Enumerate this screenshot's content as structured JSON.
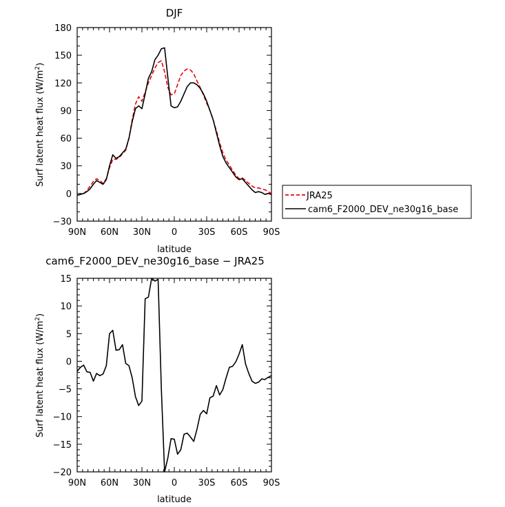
{
  "chart_data": [
    {
      "type": "line",
      "title": "DJF",
      "xlabel": "latitude",
      "ylabel": "Surf latent heat flux (W/m²)",
      "ylabel_main": "Surf latent heat flux (W/m",
      "ylabel_sup": "2",
      "ylabel_close": ")",
      "xlim": [
        90,
        -90
      ],
      "ylim": [
        -30,
        180
      ],
      "xtick_values": [
        90,
        60,
        30,
        0,
        -30,
        -60,
        -90
      ],
      "xtick_labels": [
        "90N",
        "60N",
        "30N",
        "0",
        "30S",
        "60S",
        "90S"
      ],
      "ytick_values": [
        -30,
        0,
        30,
        60,
        90,
        120,
        150,
        180
      ],
      "ytick_labels": [
        "−30",
        "0",
        "30",
        "60",
        "90",
        "120",
        "150",
        "180"
      ],
      "legend": {
        "position": "right",
        "entries": [
          "JRA25",
          "cam6_F2000_DEV_ne30g16_base"
        ]
      },
      "series": [
        {
          "name": "JRA25",
          "color": "#e8000b",
          "dash": "dashed",
          "x": [
            90,
            87,
            84,
            81,
            78,
            75,
            72,
            69,
            66,
            63,
            60,
            57,
            54,
            51,
            48,
            45,
            42,
            39,
            36,
            33,
            30,
            27,
            24,
            21,
            18,
            15,
            12,
            9,
            6,
            3,
            0,
            -3,
            -6,
            -9,
            -12,
            -15,
            -18,
            -21,
            -24,
            -27,
            -30,
            -33,
            -36,
            -39,
            -42,
            -45,
            -48,
            -51,
            -54,
            -57,
            -60,
            -63,
            -66,
            -69,
            -72,
            -75,
            -78,
            -81,
            -84,
            -87,
            -90
          ],
          "y": [
            -2,
            -1,
            0,
            3,
            8,
            13,
            16,
            14,
            11,
            16,
            28,
            37,
            37,
            39,
            43,
            47,
            60,
            80,
            97,
            105,
            100,
            110,
            120,
            128,
            136,
            142,
            144,
            132,
            115,
            107,
            108,
            118,
            128,
            133,
            135,
            134,
            130,
            122,
            115,
            107,
            98,
            90,
            80,
            68,
            55,
            44,
            36,
            31,
            25,
            20,
            16,
            17,
            14,
            11,
            8,
            6,
            6,
            5,
            4,
            2,
            0
          ]
        },
        {
          "name": "cam6_F2000_DEV_ne30g16_base",
          "color": "#000000",
          "dash": "solid",
          "x": [
            90,
            87,
            84,
            81,
            78,
            75,
            72,
            69,
            66,
            63,
            60,
            57,
            54,
            51,
            48,
            45,
            42,
            39,
            36,
            33,
            30,
            27,
            24,
            21,
            18,
            15,
            12,
            9,
            6,
            3,
            0,
            -3,
            -6,
            -9,
            -12,
            -15,
            -18,
            -21,
            -24,
            -27,
            -30,
            -33,
            -36,
            -39,
            -42,
            -45,
            -48,
            -51,
            -54,
            -57,
            -60,
            -63,
            -66,
            -69,
            -72,
            -75,
            -78,
            -81,
            -84,
            -87,
            -90
          ],
          "y": [
            -2,
            -1,
            0,
            2,
            5,
            10,
            14,
            12,
            10,
            15,
            30,
            42,
            38,
            40,
            44,
            48,
            60,
            78,
            92,
            95,
            92,
            108,
            125,
            132,
            145,
            150,
            157,
            158,
            126,
            95,
            93,
            94,
            100,
            108,
            116,
            120,
            120,
            118,
            114,
            108,
            100,
            90,
            80,
            66,
            52,
            40,
            33,
            28,
            23,
            18,
            15,
            16,
            12,
            8,
            4,
            1,
            2,
            1,
            -1,
            0,
            -1
          ]
        }
      ]
    },
    {
      "type": "line",
      "title": "cam6_F2000_DEV_ne30g16_base − JRA25",
      "xlabel": "latitude",
      "ylabel": "Surf latent heat flux (W/m²)",
      "ylabel_main": "Surf latent heat flux (W/m",
      "ylabel_sup": "2",
      "ylabel_close": ")",
      "xlim": [
        90,
        -90
      ],
      "ylim": [
        -20,
        15
      ],
      "xtick_values": [
        90,
        60,
        30,
        0,
        -30,
        -60,
        -90
      ],
      "xtick_labels": [
        "90N",
        "60N",
        "30N",
        "0",
        "30S",
        "60S",
        "90S"
      ],
      "ytick_values": [
        -20,
        -15,
        -10,
        -5,
        0,
        5,
        10,
        15
      ],
      "ytick_labels": [
        "−20",
        "−15",
        "−10",
        "−5",
        "0",
        "5",
        "10",
        "15"
      ],
      "series": [
        {
          "color": "#000000",
          "dash": "solid",
          "x": [
            90,
            87,
            84,
            81,
            78,
            75,
            72,
            69,
            66,
            63,
            60,
            57,
            54,
            51,
            48,
            45,
            42,
            39,
            36,
            33,
            30,
            27,
            24,
            21,
            18,
            15,
            12,
            9,
            6,
            3,
            0,
            -3,
            -6,
            -9,
            -12,
            -15,
            -18,
            -21,
            -24,
            -27,
            -30,
            -33,
            -36,
            -39,
            -42,
            -45,
            -48,
            -51,
            -54,
            -57,
            -60,
            -63,
            -66,
            -69,
            -72,
            -75,
            -78,
            -81,
            -84,
            -87,
            -90
          ],
          "y": [
            -1.8,
            -1.1,
            -0.7,
            -1.9,
            -2.0,
            -3.6,
            -2.2,
            -2.6,
            -2.3,
            -0.8,
            5.0,
            5.6,
            2.0,
            2.1,
            3.0,
            -0.4,
            -0.8,
            -3.0,
            -6.4,
            -8.0,
            -7.2,
            11.3,
            11.6,
            15.0,
            14.5,
            14.8,
            -5.0,
            -20.0,
            -17.5,
            -14.0,
            -14.1,
            -16.8,
            -16.0,
            -13.2,
            -13.0,
            -13.7,
            -14.5,
            -12.3,
            -9.6,
            -8.9,
            -9.5,
            -6.6,
            -6.3,
            -4.4,
            -6.1,
            -5.1,
            -3.0,
            -1.1,
            -0.9,
            -0.1,
            1.3,
            3.0,
            -0.5,
            -2.2,
            -3.6,
            -4.0,
            -3.8,
            -3.2,
            -3.3,
            -2.9,
            -2.6
          ]
        }
      ]
    }
  ]
}
